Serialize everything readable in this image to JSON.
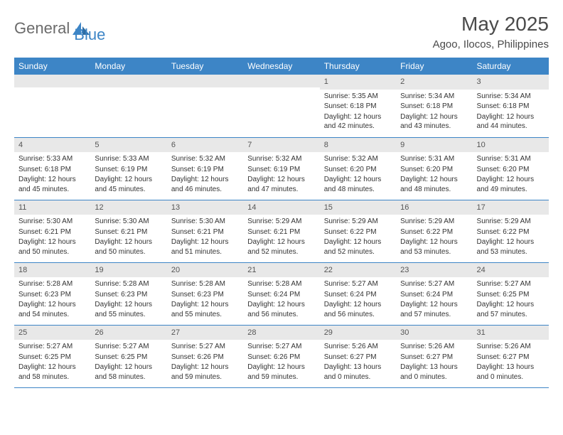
{
  "brand": {
    "name1": "General",
    "name2": "Blue"
  },
  "title": "May 2025",
  "location": "Agoo, Ilocos, Philippines",
  "colors": {
    "header_bg": "#3d85c6",
    "header_text": "#ffffff",
    "daynum_bg": "#e8e8e8",
    "border": "#3d85c6",
    "text": "#333333",
    "logo_gray": "#6b6b6b",
    "logo_blue": "#3d85c6"
  },
  "dow": [
    "Sunday",
    "Monday",
    "Tuesday",
    "Wednesday",
    "Thursday",
    "Friday",
    "Saturday"
  ],
  "weeks": [
    [
      {
        "n": "",
        "sr": "",
        "ss": "",
        "dl": ""
      },
      {
        "n": "",
        "sr": "",
        "ss": "",
        "dl": ""
      },
      {
        "n": "",
        "sr": "",
        "ss": "",
        "dl": ""
      },
      {
        "n": "",
        "sr": "",
        "ss": "",
        "dl": ""
      },
      {
        "n": "1",
        "sr": "Sunrise: 5:35 AM",
        "ss": "Sunset: 6:18 PM",
        "dl": "Daylight: 12 hours and 42 minutes."
      },
      {
        "n": "2",
        "sr": "Sunrise: 5:34 AM",
        "ss": "Sunset: 6:18 PM",
        "dl": "Daylight: 12 hours and 43 minutes."
      },
      {
        "n": "3",
        "sr": "Sunrise: 5:34 AM",
        "ss": "Sunset: 6:18 PM",
        "dl": "Daylight: 12 hours and 44 minutes."
      }
    ],
    [
      {
        "n": "4",
        "sr": "Sunrise: 5:33 AM",
        "ss": "Sunset: 6:18 PM",
        "dl": "Daylight: 12 hours and 45 minutes."
      },
      {
        "n": "5",
        "sr": "Sunrise: 5:33 AM",
        "ss": "Sunset: 6:19 PM",
        "dl": "Daylight: 12 hours and 45 minutes."
      },
      {
        "n": "6",
        "sr": "Sunrise: 5:32 AM",
        "ss": "Sunset: 6:19 PM",
        "dl": "Daylight: 12 hours and 46 minutes."
      },
      {
        "n": "7",
        "sr": "Sunrise: 5:32 AM",
        "ss": "Sunset: 6:19 PM",
        "dl": "Daylight: 12 hours and 47 minutes."
      },
      {
        "n": "8",
        "sr": "Sunrise: 5:32 AM",
        "ss": "Sunset: 6:20 PM",
        "dl": "Daylight: 12 hours and 48 minutes."
      },
      {
        "n": "9",
        "sr": "Sunrise: 5:31 AM",
        "ss": "Sunset: 6:20 PM",
        "dl": "Daylight: 12 hours and 48 minutes."
      },
      {
        "n": "10",
        "sr": "Sunrise: 5:31 AM",
        "ss": "Sunset: 6:20 PM",
        "dl": "Daylight: 12 hours and 49 minutes."
      }
    ],
    [
      {
        "n": "11",
        "sr": "Sunrise: 5:30 AM",
        "ss": "Sunset: 6:21 PM",
        "dl": "Daylight: 12 hours and 50 minutes."
      },
      {
        "n": "12",
        "sr": "Sunrise: 5:30 AM",
        "ss": "Sunset: 6:21 PM",
        "dl": "Daylight: 12 hours and 50 minutes."
      },
      {
        "n": "13",
        "sr": "Sunrise: 5:30 AM",
        "ss": "Sunset: 6:21 PM",
        "dl": "Daylight: 12 hours and 51 minutes."
      },
      {
        "n": "14",
        "sr": "Sunrise: 5:29 AM",
        "ss": "Sunset: 6:21 PM",
        "dl": "Daylight: 12 hours and 52 minutes."
      },
      {
        "n": "15",
        "sr": "Sunrise: 5:29 AM",
        "ss": "Sunset: 6:22 PM",
        "dl": "Daylight: 12 hours and 52 minutes."
      },
      {
        "n": "16",
        "sr": "Sunrise: 5:29 AM",
        "ss": "Sunset: 6:22 PM",
        "dl": "Daylight: 12 hours and 53 minutes."
      },
      {
        "n": "17",
        "sr": "Sunrise: 5:29 AM",
        "ss": "Sunset: 6:22 PM",
        "dl": "Daylight: 12 hours and 53 minutes."
      }
    ],
    [
      {
        "n": "18",
        "sr": "Sunrise: 5:28 AM",
        "ss": "Sunset: 6:23 PM",
        "dl": "Daylight: 12 hours and 54 minutes."
      },
      {
        "n": "19",
        "sr": "Sunrise: 5:28 AM",
        "ss": "Sunset: 6:23 PM",
        "dl": "Daylight: 12 hours and 55 minutes."
      },
      {
        "n": "20",
        "sr": "Sunrise: 5:28 AM",
        "ss": "Sunset: 6:23 PM",
        "dl": "Daylight: 12 hours and 55 minutes."
      },
      {
        "n": "21",
        "sr": "Sunrise: 5:28 AM",
        "ss": "Sunset: 6:24 PM",
        "dl": "Daylight: 12 hours and 56 minutes."
      },
      {
        "n": "22",
        "sr": "Sunrise: 5:27 AM",
        "ss": "Sunset: 6:24 PM",
        "dl": "Daylight: 12 hours and 56 minutes."
      },
      {
        "n": "23",
        "sr": "Sunrise: 5:27 AM",
        "ss": "Sunset: 6:24 PM",
        "dl": "Daylight: 12 hours and 57 minutes."
      },
      {
        "n": "24",
        "sr": "Sunrise: 5:27 AM",
        "ss": "Sunset: 6:25 PM",
        "dl": "Daylight: 12 hours and 57 minutes."
      }
    ],
    [
      {
        "n": "25",
        "sr": "Sunrise: 5:27 AM",
        "ss": "Sunset: 6:25 PM",
        "dl": "Daylight: 12 hours and 58 minutes."
      },
      {
        "n": "26",
        "sr": "Sunrise: 5:27 AM",
        "ss": "Sunset: 6:25 PM",
        "dl": "Daylight: 12 hours and 58 minutes."
      },
      {
        "n": "27",
        "sr": "Sunrise: 5:27 AM",
        "ss": "Sunset: 6:26 PM",
        "dl": "Daylight: 12 hours and 59 minutes."
      },
      {
        "n": "28",
        "sr": "Sunrise: 5:27 AM",
        "ss": "Sunset: 6:26 PM",
        "dl": "Daylight: 12 hours and 59 minutes."
      },
      {
        "n": "29",
        "sr": "Sunrise: 5:26 AM",
        "ss": "Sunset: 6:27 PM",
        "dl": "Daylight: 13 hours and 0 minutes."
      },
      {
        "n": "30",
        "sr": "Sunrise: 5:26 AM",
        "ss": "Sunset: 6:27 PM",
        "dl": "Daylight: 13 hours and 0 minutes."
      },
      {
        "n": "31",
        "sr": "Sunrise: 5:26 AM",
        "ss": "Sunset: 6:27 PM",
        "dl": "Daylight: 13 hours and 0 minutes."
      }
    ]
  ]
}
